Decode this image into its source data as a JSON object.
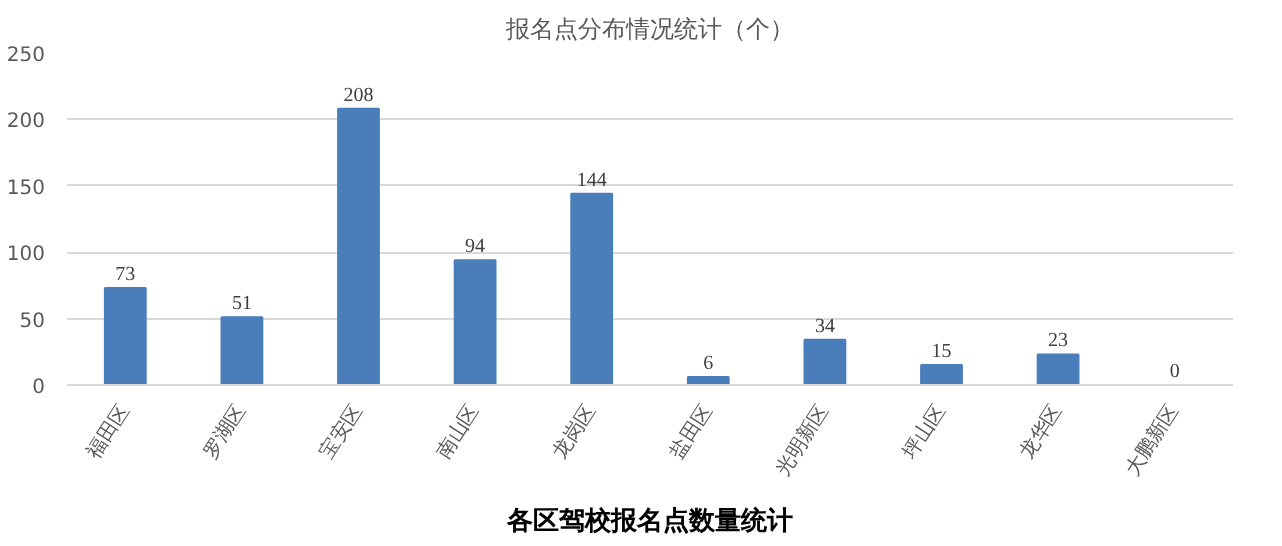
{
  "chart_data": {
    "type": "bar",
    "title": "报名点分布情况统计（个）",
    "categories": [
      "福田区",
      "罗湖区",
      "宝安区",
      "南山区",
      "龙岗区",
      "盐田区",
      "光明新区",
      "坪山区",
      "龙华区",
      "大鹏新区"
    ],
    "values": [
      73,
      51,
      208,
      94,
      144,
      6,
      34,
      15,
      23,
      0
    ],
    "color": "#4a7ebb",
    "ylim": [
      0,
      250
    ],
    "yticks": [
      0,
      50,
      100,
      150,
      200,
      250
    ],
    "grid": "y",
    "data_labels": true,
    "annotations": [
      "各区驾校报名点数量统计"
    ]
  }
}
